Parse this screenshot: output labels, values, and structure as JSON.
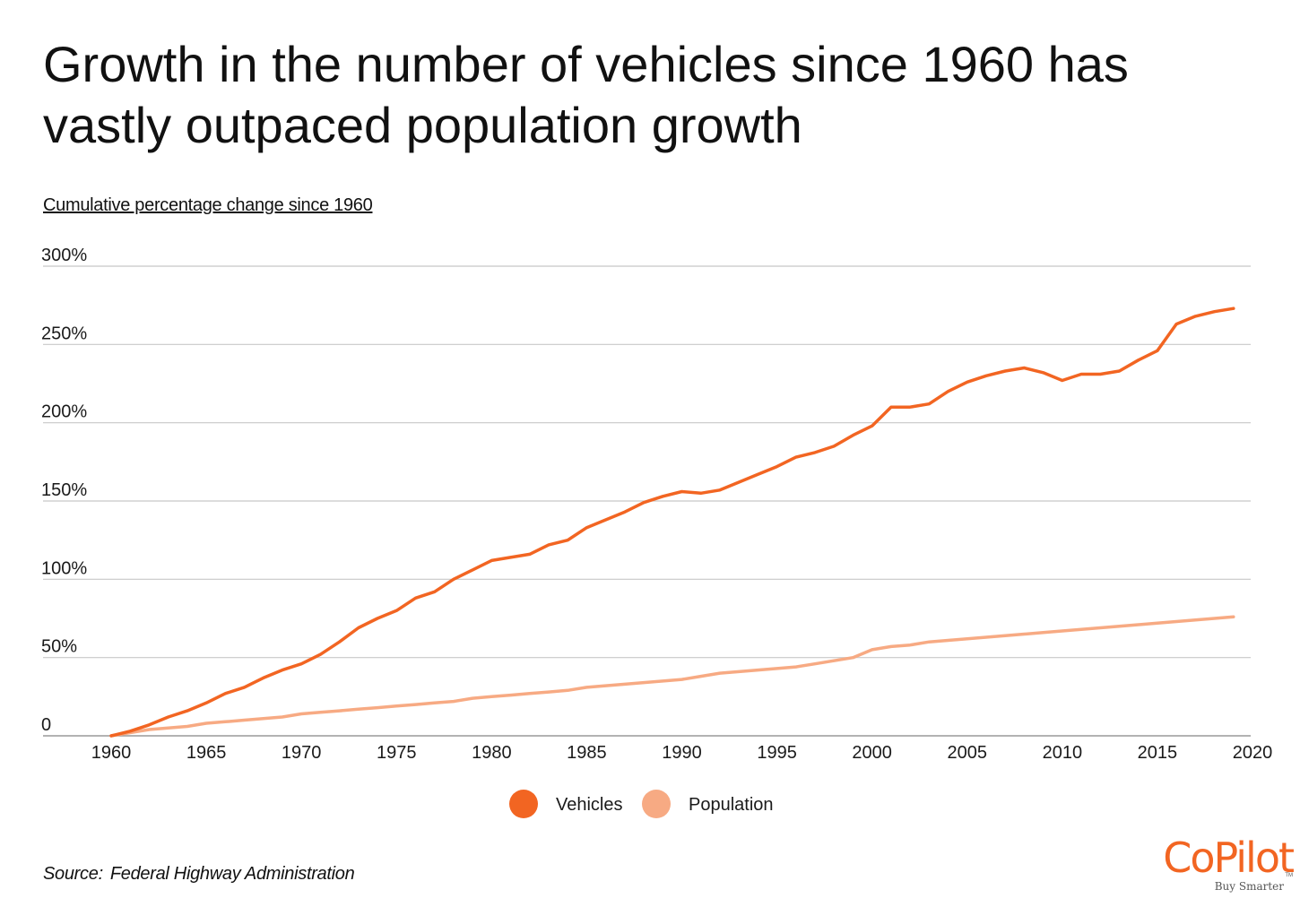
{
  "title": "Growth in the number of vehicles since 1960 has vastly outpaced population growth",
  "subtitle": "Cumulative percentage change since 1960",
  "source_label": "Source:",
  "source_text": "Federal Highway Administration",
  "logo": {
    "text": "CoPilot",
    "tagline": "Buy Smarter",
    "tm": "TM"
  },
  "colors": {
    "vehicles": "#f26522",
    "population": "#f7aa83",
    "grid": "#c8c8c8"
  },
  "chart_data": {
    "type": "line",
    "x_ticks": [
      "1960",
      "1965",
      "1970",
      "1975",
      "1980",
      "1985",
      "1990",
      "1995",
      "2000",
      "2005",
      "2010",
      "2015",
      "2020"
    ],
    "y_ticks": [
      {
        "value": 0,
        "label": "0"
      },
      {
        "value": 50,
        "label": "50%"
      },
      {
        "value": 100,
        "label": "100%"
      },
      {
        "value": 150,
        "label": "150%"
      },
      {
        "value": 200,
        "label": "200%"
      },
      {
        "value": 250,
        "label": "250%"
      },
      {
        "value": 300,
        "label": "300%"
      }
    ],
    "xlim": [
      1960,
      2020
    ],
    "ylim": [
      0,
      300
    ],
    "grid": true,
    "legend_position": "bottom-center",
    "x": [
      1960,
      1961,
      1962,
      1963,
      1964,
      1965,
      1966,
      1967,
      1968,
      1969,
      1970,
      1971,
      1972,
      1973,
      1974,
      1975,
      1976,
      1977,
      1978,
      1979,
      1980,
      1981,
      1982,
      1983,
      1984,
      1985,
      1986,
      1987,
      1988,
      1989,
      1990,
      1991,
      1992,
      1993,
      1994,
      1995,
      1996,
      1997,
      1998,
      1999,
      2000,
      2001,
      2002,
      2003,
      2004,
      2005,
      2006,
      2007,
      2008,
      2009,
      2010,
      2011,
      2012,
      2013,
      2014,
      2015,
      2016,
      2017,
      2018,
      2019
    ],
    "series": [
      {
        "name": "Vehicles",
        "color": "#f26522",
        "values": [
          0,
          3,
          7,
          12,
          16,
          21,
          27,
          31,
          37,
          42,
          46,
          52,
          60,
          69,
          75,
          80,
          88,
          92,
          100,
          106,
          112,
          114,
          116,
          122,
          125,
          133,
          138,
          143,
          149,
          153,
          156,
          155,
          157,
          162,
          167,
          172,
          178,
          181,
          185,
          192,
          198,
          210,
          210,
          212,
          220,
          226,
          230,
          233,
          235,
          232,
          227,
          231,
          231,
          233,
          240,
          246,
          263,
          268,
          271,
          273
        ]
      },
      {
        "name": "Population",
        "color": "#f7aa83",
        "values": [
          0,
          2,
          4,
          5,
          6,
          8,
          9,
          10,
          11,
          12,
          14,
          15,
          16,
          17,
          18,
          19,
          20,
          21,
          22,
          24,
          25,
          26,
          27,
          28,
          29,
          31,
          32,
          33,
          34,
          35,
          36,
          38,
          40,
          41,
          42,
          43,
          44,
          46,
          48,
          50,
          55,
          57,
          58,
          60,
          61,
          62,
          63,
          64,
          65,
          66,
          67,
          68,
          69,
          70,
          71,
          72,
          73,
          74,
          75,
          76
        ]
      }
    ]
  }
}
